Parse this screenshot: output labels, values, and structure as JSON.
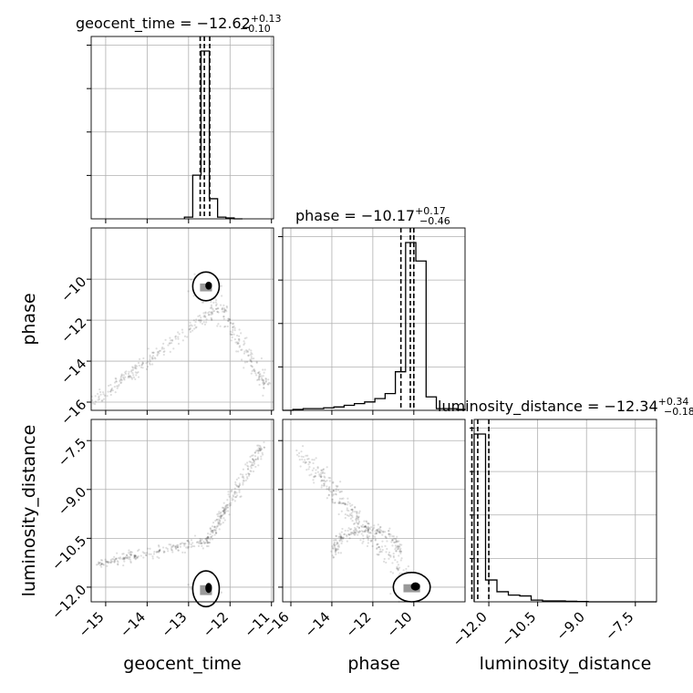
{
  "chart_data": {
    "type": "corner",
    "parameters": [
      "geocent_time",
      "phase",
      "luminosity_distance"
    ],
    "axis_labels": [
      "geocent_time",
      "phase",
      "luminosity_distance"
    ],
    "titles": [
      {
        "param": "geocent_time",
        "text": "geocent_time = −12.62",
        "plus": "+0.13",
        "minus": "−0.10"
      },
      {
        "param": "phase",
        "text": "phase = −10.17",
        "plus": "+0.17",
        "minus": "−0.46"
      },
      {
        "param": "luminosity_distance",
        "text": "luminosity_distance = −12.34",
        "plus": "+0.34",
        "minus": "−0.18"
      }
    ],
    "ranges": {
      "geocent_time": [
        -15.35,
        -10.95
      ],
      "phase": [
        -16.4,
        -7.5
      ],
      "luminosity_distance": [
        -12.45,
        -6.85
      ]
    },
    "ticks": {
      "geocent_time": {
        "values": [
          -15,
          -14,
          -13,
          -12,
          -11
        ],
        "labels": [
          "−15",
          "−14",
          "−13",
          "−12",
          "−11"
        ]
      },
      "phase": {
        "values": [
          -16,
          -14,
          -12,
          -10
        ],
        "labels": [
          "−16",
          "−14",
          "−12",
          "−10"
        ]
      },
      "luminosity_distance": {
        "values": [
          -12.0,
          -10.5,
          -9.0,
          -7.5
        ],
        "labels": [
          "−12.0",
          "−10.5",
          "−9.0",
          "−7.5"
        ]
      }
    },
    "quantile_lines": {
      "geocent_time": [
        -12.72,
        -12.62,
        -12.49
      ],
      "phase": [
        -10.63,
        -10.17,
        -10.0
      ],
      "luminosity_distance": [
        -12.52,
        -12.34,
        -12.0
      ]
    },
    "marginals": {
      "geocent_time": {
        "edges": [
          -13.1,
          -12.9,
          -12.7,
          -12.5,
          -12.3,
          -12.1,
          -11.9,
          -11.7
        ],
        "counts": [
          0.01,
          0.26,
          1.0,
          0.12,
          0.01,
          0.005,
          0.0
        ]
      },
      "phase": {
        "edges": [
          -16.4,
          -15.9,
          -15.4,
          -14.9,
          -14.4,
          -13.9,
          -13.4,
          -12.9,
          -12.4,
          -11.9,
          -11.4,
          -10.9,
          -10.4,
          -9.9,
          -9.4,
          -8.9,
          -8.4,
          -7.9,
          -7.5
        ],
        "counts": [
          0.0,
          0.005,
          0.01,
          0.01,
          0.015,
          0.02,
          0.03,
          0.04,
          0.05,
          0.07,
          0.1,
          0.23,
          1.0,
          0.89,
          0.08,
          0.01,
          0.01,
          0.005
        ]
      },
      "luminosity_distance": {
        "edges": [
          -12.45,
          -12.1,
          -11.75,
          -11.4,
          -11.05,
          -10.7,
          -10.35,
          -10.0,
          -9.65,
          -9.3,
          -8.95,
          -8.6,
          -8.25,
          -7.9,
          -7.55,
          -7.2,
          -6.85
        ],
        "counts": [
          1.0,
          0.13,
          0.06,
          0.04,
          0.035,
          0.01,
          0.005,
          0.005,
          0.003,
          0.002,
          0.0,
          0.0,
          0.0,
          0.0,
          0.0,
          0.0
        ]
      }
    },
    "grid": true,
    "scatter_color": "#000000",
    "contour_color": "#000000",
    "hist_color": "#000000",
    "quantile_line_style": "dashed"
  }
}
